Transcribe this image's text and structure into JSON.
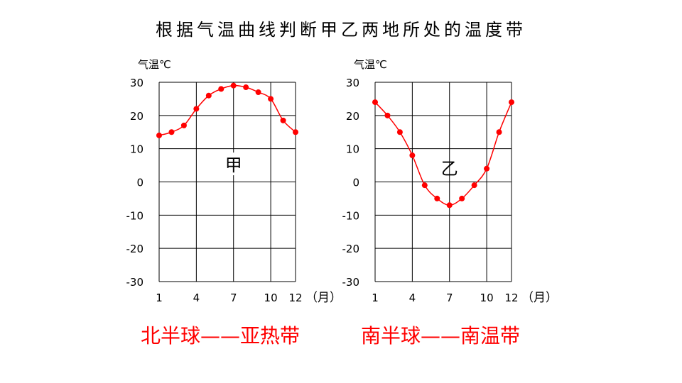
{
  "title": "根据气温曲线判断甲乙两地所处的温度带",
  "chart_data": [
    {
      "type": "line",
      "ylabel": "气温℃",
      "xlabel": "（月）",
      "region_label": "甲",
      "x": [
        1,
        2,
        3,
        4,
        5,
        6,
        7,
        8,
        9,
        10,
        11,
        12
      ],
      "x_ticks": [
        1,
        4,
        7,
        10,
        12
      ],
      "ylim": [
        -30,
        30
      ],
      "y_ticks": [
        30,
        20,
        10,
        0,
        -10,
        -20,
        -30
      ],
      "grid": true,
      "line_color": "#ff0000",
      "series": [
        {
          "values": [
            14,
            15,
            17,
            22,
            26,
            28,
            29,
            28.5,
            27,
            25,
            18.5,
            15
          ]
        }
      ]
    },
    {
      "type": "line",
      "ylabel": "气温℃",
      "xlabel": "（月）",
      "region_label": "乙",
      "x": [
        1,
        2,
        3,
        4,
        5,
        6,
        7,
        8,
        9,
        10,
        11,
        12
      ],
      "x_ticks": [
        1,
        4,
        7,
        10,
        12
      ],
      "ylim": [
        -30,
        30
      ],
      "y_ticks": [
        30,
        20,
        10,
        0,
        -10,
        -20,
        -30
      ],
      "grid": true,
      "line_color": "#ff0000",
      "series": [
        {
          "values": [
            24,
            20,
            15,
            8,
            -1,
            -5,
            -7,
            -5,
            -1,
            4,
            15,
            24
          ]
        }
      ]
    }
  ],
  "conclusions": {
    "jia": "北半球——亚热带",
    "yi": "南半球——南温带"
  }
}
